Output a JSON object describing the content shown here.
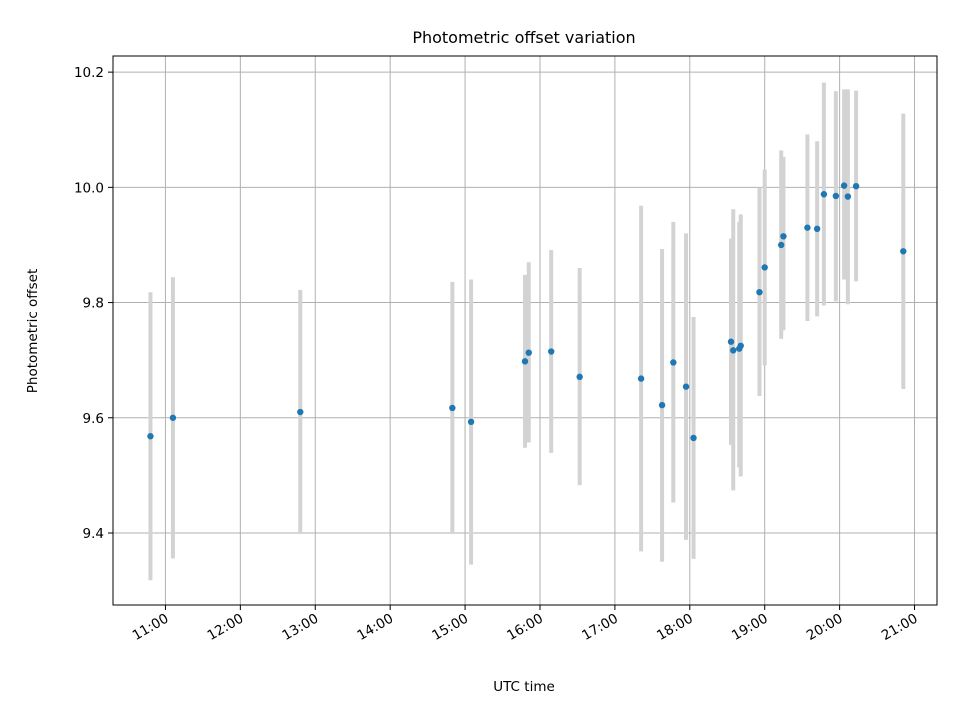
{
  "chart_data": {
    "type": "scatter",
    "title": "Photometric offset variation",
    "xlabel": "UTC time",
    "ylabel": "Photometric offset",
    "x_unit": "UTC hour of day",
    "xlim": [
      10.3,
      21.3
    ],
    "ylim": [
      9.275,
      10.228
    ],
    "x_ticks": [
      {
        "value": 11,
        "label": "11:00"
      },
      {
        "value": 12,
        "label": "12:00"
      },
      {
        "value": 13,
        "label": "13:00"
      },
      {
        "value": 14,
        "label": "14:00"
      },
      {
        "value": 15,
        "label": "15:00"
      },
      {
        "value": 16,
        "label": "16:00"
      },
      {
        "value": 17,
        "label": "17:00"
      },
      {
        "value": 18,
        "label": "18:00"
      },
      {
        "value": 19,
        "label": "19:00"
      },
      {
        "value": 20,
        "label": "20:00"
      },
      {
        "value": 21,
        "label": "21:00"
      }
    ],
    "y_ticks": [
      {
        "value": 9.4,
        "label": "9.4"
      },
      {
        "value": 9.6,
        "label": "9.6"
      },
      {
        "value": 9.8,
        "label": "9.8"
      },
      {
        "value": 10.0,
        "label": "10.0"
      },
      {
        "value": 10.2,
        "label": "10.2"
      }
    ],
    "grid": true,
    "colors": {
      "points": "#1f77b4",
      "error_bars": "#d3d3d3"
    },
    "points": [
      {
        "x": 10.8,
        "y": 9.568,
        "y_low": 9.318,
        "y_high": 9.818
      },
      {
        "x": 11.1,
        "y": 9.6,
        "y_low": 9.356,
        "y_high": 9.844
      },
      {
        "x": 12.8,
        "y": 9.61,
        "y_low": 9.4,
        "y_high": 9.822
      },
      {
        "x": 14.83,
        "y": 9.617,
        "y_low": 9.4,
        "y_high": 9.836
      },
      {
        "x": 15.08,
        "y": 9.593,
        "y_low": 9.345,
        "y_high": 9.84
      },
      {
        "x": 15.8,
        "y": 9.698,
        "y_low": 9.548,
        "y_high": 9.848
      },
      {
        "x": 15.85,
        "y": 9.713,
        "y_low": 9.557,
        "y_high": 9.87
      },
      {
        "x": 16.15,
        "y": 9.715,
        "y_low": 9.539,
        "y_high": 9.891
      },
      {
        "x": 16.53,
        "y": 9.671,
        "y_low": 9.483,
        "y_high": 9.86
      },
      {
        "x": 17.35,
        "y": 9.668,
        "y_low": 9.368,
        "y_high": 9.968
      },
      {
        "x": 17.63,
        "y": 9.622,
        "y_low": 9.35,
        "y_high": 9.893
      },
      {
        "x": 17.78,
        "y": 9.696,
        "y_low": 9.453,
        "y_high": 9.94
      },
      {
        "x": 17.95,
        "y": 9.654,
        "y_low": 9.388,
        "y_high": 9.92
      },
      {
        "x": 18.05,
        "y": 9.565,
        "y_low": 9.355,
        "y_high": 9.775
      },
      {
        "x": 18.55,
        "y": 9.732,
        "y_low": 9.553,
        "y_high": 9.911
      },
      {
        "x": 18.58,
        "y": 9.717,
        "y_low": 9.474,
        "y_high": 9.962
      },
      {
        "x": 18.66,
        "y": 9.72,
        "y_low": 9.514,
        "y_high": 9.94
      },
      {
        "x": 18.68,
        "y": 9.725,
        "y_low": 9.498,
        "y_high": 9.953
      },
      {
        "x": 18.93,
        "y": 9.818,
        "y_low": 9.638,
        "y_high": 10.0
      },
      {
        "x": 19.0,
        "y": 9.861,
        "y_low": 9.691,
        "y_high": 10.031
      },
      {
        "x": 19.22,
        "y": 9.9,
        "y_low": 9.737,
        "y_high": 10.064
      },
      {
        "x": 19.25,
        "y": 9.915,
        "y_low": 9.752,
        "y_high": 10.053
      },
      {
        "x": 19.57,
        "y": 9.93,
        "y_low": 9.768,
        "y_high": 10.092
      },
      {
        "x": 19.7,
        "y": 9.928,
        "y_low": 9.776,
        "y_high": 10.08
      },
      {
        "x": 19.79,
        "y": 9.988,
        "y_low": 9.795,
        "y_high": 10.182
      },
      {
        "x": 19.95,
        "y": 9.985,
        "y_low": 9.802,
        "y_high": 10.167
      },
      {
        "x": 20.06,
        "y": 10.003,
        "y_low": 9.84,
        "y_high": 10.17
      },
      {
        "x": 20.11,
        "y": 9.984,
        "y_low": 9.797,
        "y_high": 10.17
      },
      {
        "x": 20.22,
        "y": 10.002,
        "y_low": 9.837,
        "y_high": 10.168
      },
      {
        "x": 20.85,
        "y": 9.889,
        "y_low": 9.65,
        "y_high": 10.128
      }
    ]
  }
}
